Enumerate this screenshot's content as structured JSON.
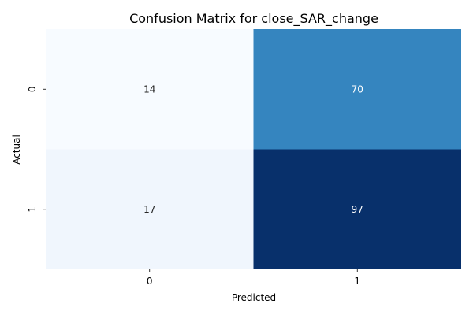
{
  "chart_data": {
    "type": "heatmap",
    "title": "Confusion Matrix for close_SAR_change",
    "xlabel": "Predicted",
    "ylabel": "Actual",
    "x_categories": [
      "0",
      "1"
    ],
    "y_categories": [
      "0",
      "1"
    ],
    "values": [
      [
        14,
        70
      ],
      [
        17,
        97
      ]
    ],
    "colormap": "Blues",
    "colorbar": false,
    "grid": false
  }
}
